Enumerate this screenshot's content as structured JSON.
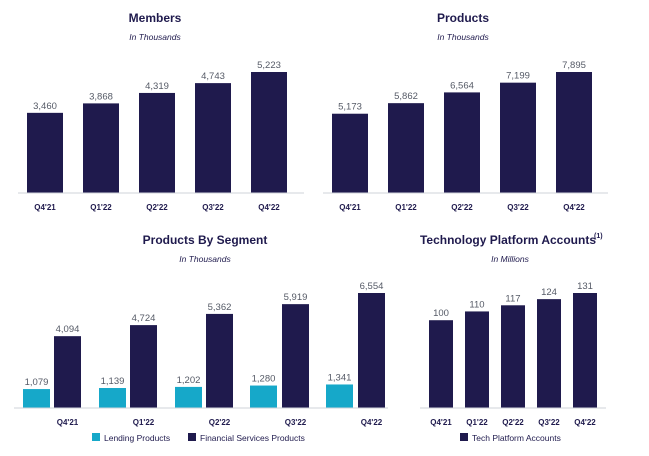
{
  "colors": {
    "navy": "#1f1a4d",
    "teal": "#16a8c9",
    "axis": "#cfd3da"
  },
  "chart_data": [
    {
      "type": "bar",
      "title": "Members",
      "subtitle": "In Thousands",
      "categories": [
        "Q4'21",
        "Q1'22",
        "Q2'22",
        "Q3'22",
        "Q4'22"
      ],
      "series": [
        {
          "values": [
            3460,
            3868,
            4319,
            4743,
            5223
          ],
          "labels": [
            "3,460",
            "3,868",
            "4,319",
            "4,743",
            "5,223"
          ]
        }
      ]
    },
    {
      "type": "bar",
      "title": "Products",
      "subtitle": "In Thousands",
      "categories": [
        "Q4'21",
        "Q1'22",
        "Q2'22",
        "Q3'22",
        "Q4'22"
      ],
      "series": [
        {
          "values": [
            5173,
            5862,
            6564,
            7199,
            7895
          ],
          "labels": [
            "5,173",
            "5,862",
            "6,564",
            "7,199",
            "7,895"
          ]
        }
      ]
    },
    {
      "type": "bar",
      "title": "Products By Segment",
      "subtitle": "In Thousands",
      "categories": [
        "Q4'21",
        "Q1'22",
        "Q2'22",
        "Q3'22",
        "Q4'22"
      ],
      "series": [
        {
          "name": "Lending Products",
          "values": [
            1079,
            1139,
            1202,
            1280,
            1341
          ],
          "labels": [
            "1,079",
            "1,139",
            "1,202",
            "1,280",
            "1,341"
          ]
        },
        {
          "name": "Financial Services Products",
          "values": [
            4094,
            4724,
            5362,
            5919,
            6554
          ],
          "labels": [
            "4,094",
            "4,724",
            "5,362",
            "5,919",
            "6,554"
          ]
        }
      ],
      "legend": "bottom"
    },
    {
      "type": "bar",
      "title": "Technology Platform Accounts",
      "title_superscript": "(1)",
      "subtitle": "In Millions",
      "categories": [
        "Q4'21",
        "Q1'22",
        "Q2'22",
        "Q3'22",
        "Q4'22"
      ],
      "series": [
        {
          "name": "Tech Platform Accounts",
          "values": [
            100,
            110,
            117,
            124,
            131
          ],
          "labels": [
            "100",
            "110",
            "117",
            "124",
            "131"
          ]
        }
      ],
      "legend": "bottom"
    }
  ]
}
